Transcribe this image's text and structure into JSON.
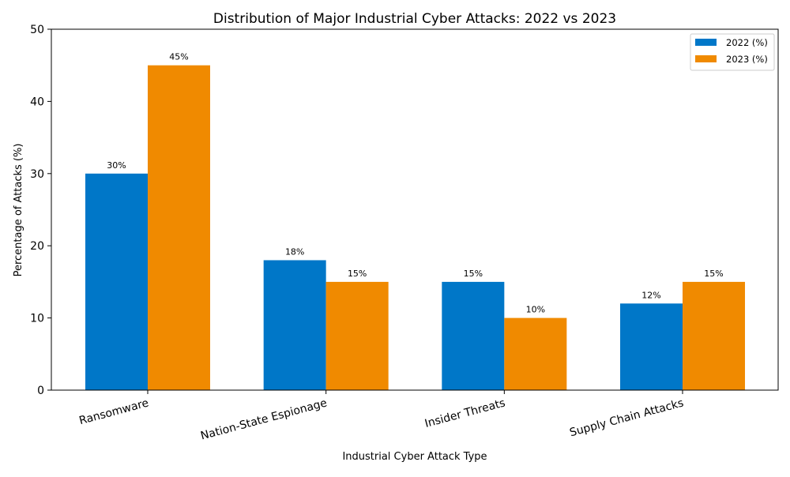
{
  "chart_data": {
    "type": "bar",
    "title": "Distribution of Major Industrial Cyber Attacks: 2022 vs 2023",
    "xlabel": "Industrial Cyber Attack Type",
    "ylabel": "Percentage of Attacks (%)",
    "categories": [
      "Ransomware",
      "Nation-State Espionage",
      "Insider Threats",
      "Supply Chain Attacks"
    ],
    "series": [
      {
        "name": "2022 (%)",
        "values": [
          30,
          18,
          15,
          12
        ],
        "color": "#0077C8",
        "labels": [
          "30%",
          "18%",
          "15%",
          "12%"
        ]
      },
      {
        "name": "2023 (%)",
        "values": [
          45,
          15,
          10,
          15
        ],
        "color": "#F08A00",
        "labels": [
          "45%",
          "15%",
          "10%",
          "15%"
        ]
      }
    ],
    "ylim": [
      0,
      50
    ],
    "yticks": [
      "0",
      "10",
      "20",
      "30",
      "40",
      "50"
    ],
    "grid": false,
    "legend_position": "top-right"
  }
}
